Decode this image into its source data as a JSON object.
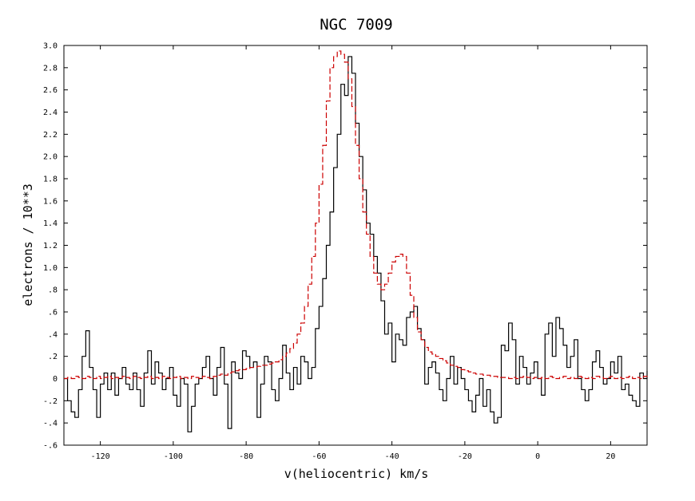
{
  "chart_data": {
    "type": "line",
    "title": "NGC 7009",
    "xlabel": "v(heliocentric) km/s",
    "ylabel": "electrons / 10**3",
    "xlim": [
      -130,
      30
    ],
    "ylim": [
      -0.6,
      3.0
    ],
    "x_ticks": [
      -120,
      -100,
      -80,
      -60,
      -40,
      -20,
      0,
      20
    ],
    "x_tick_labels": [
      "-120",
      "-100",
      "-80",
      "-60",
      "-40",
      "-20",
      "0",
      "20"
    ],
    "y_ticks": [
      -0.6,
      -0.4,
      -0.2,
      0,
      0.2,
      0.4,
      0.6,
      0.8,
      1.0,
      1.2,
      1.4,
      1.6,
      1.8,
      2.0,
      2.2,
      2.4,
      2.6,
      2.8,
      3.0
    ],
    "y_tick_labels": [
      "-.6",
      "-.4",
      "-.2",
      "0",
      ".2",
      ".4",
      ".6",
      ".8",
      "1.0",
      "1.2",
      "1.4",
      "1.6",
      "1.8",
      "2.0",
      "2.2",
      "2.4",
      "2.6",
      "2.8",
      "3.0"
    ],
    "grid": false,
    "series": [
      {
        "style": "solid-step",
        "color": "#000000",
        "x": [
          -130,
          -129,
          -128,
          -127,
          -126,
          -125,
          -124,
          -123,
          -122,
          -121,
          -120,
          -119,
          -118,
          -117,
          -116,
          -115,
          -114,
          -113,
          -112,
          -111,
          -110,
          -109,
          -108,
          -107,
          -106,
          -105,
          -104,
          -103,
          -102,
          -101,
          -100,
          -99,
          -98,
          -97,
          -96,
          -95,
          -94,
          -93,
          -92,
          -91,
          -90,
          -89,
          -88,
          -87,
          -86,
          -85,
          -84,
          -83,
          -82,
          -81,
          -80,
          -79,
          -78,
          -77,
          -76,
          -75,
          -74,
          -73,
          -72,
          -71,
          -70,
          -69,
          -68,
          -67,
          -66,
          -65,
          -64,
          -63,
          -62,
          -61,
          -60,
          -59,
          -58,
          -57,
          -56,
          -55,
          -54,
          -53,
          -52,
          -51,
          -50,
          -49,
          -48,
          -47,
          -46,
          -45,
          -44,
          -43,
          -42,
          -41,
          -40,
          -39,
          -38,
          -37,
          -36,
          -35,
          -34,
          -33,
          -32,
          -31,
          -30,
          -29,
          -28,
          -27,
          -26,
          -25,
          -24,
          -23,
          -22,
          -21,
          -20,
          -19,
          -18,
          -17,
          -16,
          -15,
          -14,
          -13,
          -12,
          -11,
          -10,
          -9,
          -8,
          -7,
          -6,
          -5,
          -4,
          -3,
          -2,
          -1,
          0,
          1,
          2,
          3,
          4,
          5,
          6,
          7,
          8,
          9,
          10,
          11,
          12,
          13,
          14,
          15,
          16,
          17,
          18,
          19,
          20,
          21,
          22,
          23,
          24,
          25,
          26,
          27,
          28,
          29,
          30
        ],
        "y": [
          0.0,
          -0.2,
          -0.3,
          -0.35,
          -0.1,
          0.2,
          0.43,
          0.1,
          -0.1,
          -0.35,
          -0.05,
          0.05,
          -0.1,
          0.05,
          -0.15,
          0.0,
          0.1,
          -0.05,
          -0.1,
          0.05,
          -0.1,
          -0.25,
          0.05,
          0.25,
          -0.05,
          0.15,
          0.05,
          -0.1,
          0.0,
          0.1,
          -0.15,
          -0.25,
          0.0,
          -0.05,
          -0.48,
          -0.25,
          -0.05,
          0.0,
          0.1,
          0.2,
          0.0,
          -0.15,
          0.1,
          0.28,
          -0.05,
          -0.45,
          0.15,
          0.05,
          0.0,
          0.25,
          0.2,
          0.1,
          0.15,
          -0.35,
          -0.05,
          0.2,
          0.15,
          -0.1,
          -0.2,
          0.0,
          0.3,
          0.05,
          -0.1,
          0.1,
          -0.05,
          0.2,
          0.15,
          0.0,
          0.1,
          0.45,
          0.65,
          0.9,
          1.2,
          1.5,
          1.9,
          2.2,
          2.65,
          2.55,
          2.9,
          2.75,
          2.3,
          2.0,
          1.7,
          1.4,
          1.3,
          1.1,
          0.95,
          0.7,
          0.4,
          0.5,
          0.15,
          0.4,
          0.35,
          0.3,
          0.55,
          0.6,
          0.65,
          0.45,
          0.35,
          -0.05,
          0.1,
          0.15,
          0.05,
          -0.1,
          -0.2,
          0.0,
          0.2,
          -0.05,
          0.1,
          0.0,
          -0.1,
          -0.2,
          -0.3,
          -0.15,
          0.0,
          -0.25,
          -0.1,
          -0.3,
          -0.4,
          -0.35,
          0.3,
          0.25,
          0.5,
          0.35,
          -0.05,
          0.2,
          0.1,
          -0.05,
          0.05,
          0.15,
          0.0,
          -0.15,
          0.4,
          0.5,
          0.2,
          0.55,
          0.45,
          0.3,
          0.1,
          0.2,
          0.35,
          0.0,
          -0.1,
          -0.2,
          -0.1,
          0.15,
          0.25,
          0.1,
          -0.05,
          0.0,
          0.15,
          0.05,
          0.2,
          -0.1,
          -0.05,
          -0.15,
          -0.2,
          -0.25,
          0.05,
          0.0,
          0.07
        ]
      },
      {
        "style": "dashed-step",
        "color": "#cc0000",
        "x": [
          -130,
          -129,
          -128,
          -127,
          -126,
          -125,
          -124,
          -123,
          -122,
          -121,
          -120,
          -119,
          -118,
          -117,
          -116,
          -115,
          -114,
          -113,
          -112,
          -111,
          -110,
          -109,
          -108,
          -107,
          -106,
          -105,
          -104,
          -103,
          -102,
          -101,
          -100,
          -99,
          -98,
          -97,
          -96,
          -95,
          -94,
          -93,
          -92,
          -91,
          -90,
          -89,
          -88,
          -87,
          -86,
          -85,
          -84,
          -83,
          -82,
          -81,
          -80,
          -79,
          -78,
          -77,
          -76,
          -75,
          -74,
          -73,
          -72,
          -71,
          -70,
          -69,
          -68,
          -67,
          -66,
          -65,
          -64,
          -63,
          -62,
          -61,
          -60,
          -59,
          -58,
          -57,
          -56,
          -55,
          -54,
          -53,
          -52,
          -51,
          -50,
          -49,
          -48,
          -47,
          -46,
          -45,
          -44,
          -43,
          -42,
          -41,
          -40,
          -39,
          -38,
          -37,
          -36,
          -35,
          -34,
          -33,
          -32,
          -31,
          -30,
          -29,
          -28,
          -27,
          -26,
          -25,
          -24,
          -23,
          -22,
          -21,
          -20,
          -19,
          -18,
          -17,
          -16,
          -15,
          -14,
          -13,
          -12,
          -11,
          -10,
          -9,
          -8,
          -7,
          -6,
          -5,
          -4,
          -3,
          -2,
          -1,
          0,
          1,
          2,
          3,
          4,
          5,
          6,
          7,
          8,
          9,
          10,
          11,
          12,
          13,
          14,
          15,
          16,
          17,
          18,
          19,
          20,
          21,
          22,
          23,
          24,
          25,
          26,
          27,
          28,
          29,
          30
        ],
        "y": [
          0.0,
          0.01,
          0.0,
          0.02,
          0.01,
          0.0,
          0.02,
          0.01,
          0.0,
          0.02,
          0.0,
          0.01,
          0.02,
          0.0,
          0.01,
          0.0,
          0.02,
          0.01,
          0.0,
          0.02,
          0.01,
          0.0,
          0.01,
          0.02,
          0.0,
          0.01,
          0.0,
          0.02,
          0.01,
          0.0,
          0.01,
          0.02,
          0.0,
          0.01,
          0.0,
          0.02,
          0.01,
          0.0,
          0.02,
          0.01,
          0.0,
          0.02,
          0.03,
          0.04,
          0.03,
          0.05,
          0.06,
          0.07,
          0.08,
          0.08,
          0.09,
          0.1,
          0.1,
          0.11,
          0.12,
          0.12,
          0.13,
          0.14,
          0.15,
          0.17,
          0.2,
          0.23,
          0.27,
          0.32,
          0.4,
          0.5,
          0.65,
          0.85,
          1.1,
          1.4,
          1.75,
          2.1,
          2.5,
          2.8,
          2.9,
          2.95,
          2.92,
          2.85,
          2.7,
          2.45,
          2.1,
          1.8,
          1.5,
          1.3,
          1.1,
          0.95,
          0.85,
          0.8,
          0.85,
          0.95,
          1.05,
          1.1,
          1.12,
          1.1,
          0.95,
          0.75,
          0.55,
          0.42,
          0.35,
          0.28,
          0.24,
          0.22,
          0.2,
          0.18,
          0.16,
          0.14,
          0.12,
          0.11,
          0.1,
          0.08,
          0.07,
          0.06,
          0.05,
          0.04,
          0.04,
          0.03,
          0.03,
          0.02,
          0.02,
          0.01,
          0.01,
          0.01,
          0.0,
          0.01,
          0.0,
          0.01,
          0.02,
          0.01,
          0.0,
          0.01,
          0.0,
          0.01,
          0.0,
          0.02,
          0.01,
          0.0,
          0.01,
          0.02,
          0.0,
          0.01,
          0.0,
          0.02,
          0.01,
          0.0,
          0.01,
          0.0,
          0.02,
          0.01,
          0.0,
          0.01,
          0.02,
          0.0,
          0.01,
          0.0,
          0.01,
          0.02,
          0.0,
          0.01,
          0.0,
          0.02,
          0.01
        ]
      }
    ]
  }
}
